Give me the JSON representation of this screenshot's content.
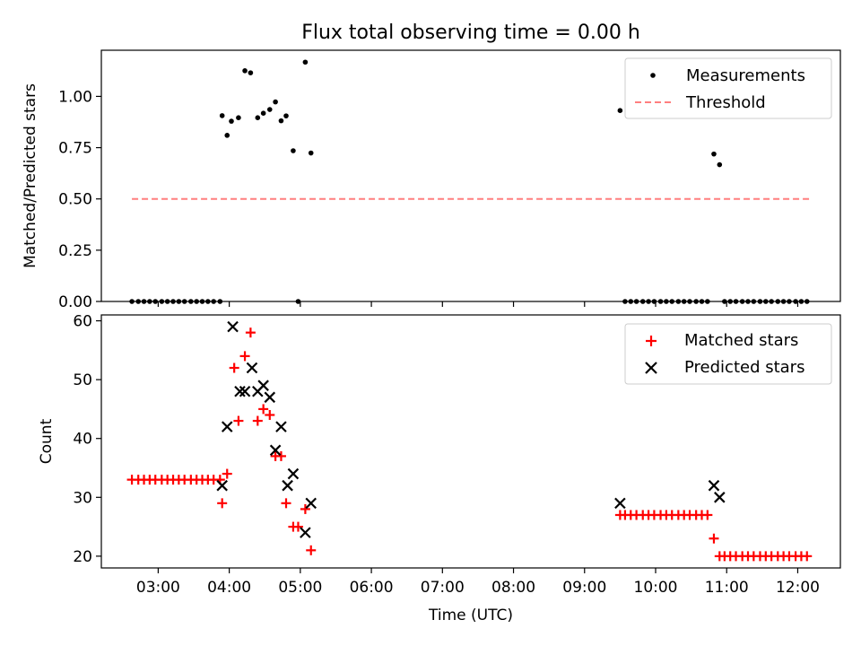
{
  "chart_data": [
    {
      "type": "scatter",
      "title": "Flux total observing time = 0.00 h",
      "xlabel": "",
      "ylabel": "Matched/Predicted stars",
      "ylim": [
        0,
        1.225
      ],
      "yticks": [
        0.0,
        0.25,
        0.5,
        0.75,
        1.0
      ],
      "ytick_labels": [
        "0.00",
        "0.25",
        "0.50",
        "0.75",
        "1.00"
      ],
      "grid": false,
      "legend_position": "top-right",
      "series": [
        {
          "name": "Measurements",
          "marker": "dot",
          "color": "#000000",
          "x_hours": [
            2.63,
            2.72,
            2.8,
            2.88,
            2.96,
            3.05,
            3.13,
            3.21,
            3.29,
            3.37,
            3.46,
            3.54,
            3.62,
            3.7,
            3.78,
            3.87,
            3.9,
            3.97,
            4.03,
            4.13,
            4.22,
            4.3,
            4.4,
            4.48,
            4.57,
            4.65,
            4.73,
            4.8,
            4.9,
            4.97,
            5.07,
            5.15,
            9.5,
            9.57,
            9.65,
            9.73,
            9.82,
            9.9,
            9.98,
            10.07,
            10.15,
            10.23,
            10.32,
            10.4,
            10.48,
            10.57,
            10.65,
            10.73,
            10.82,
            10.9,
            10.97,
            11.05,
            11.13,
            11.22,
            11.3,
            11.38,
            11.47,
            11.55,
            11.63,
            11.72,
            11.8,
            11.88,
            11.97,
            12.05,
            12.13
          ],
          "y": [
            0,
            0,
            0,
            0,
            0,
            0,
            0,
            0,
            0,
            0,
            0,
            0,
            0,
            0,
            0,
            0,
            0.906,
            0.81,
            0.879,
            0.896,
            1.125,
            1.115,
            0.896,
            0.918,
            0.936,
            0.973,
            0.881,
            0.905,
            0.735,
            0,
            1.167,
            0.724,
            0.931,
            0,
            0,
            0,
            0,
            0,
            0,
            0,
            0,
            0,
            0,
            0,
            0,
            0,
            0,
            0,
            0.719,
            0.667,
            0,
            0,
            0,
            0,
            0,
            0,
            0,
            0,
            0,
            0,
            0,
            0,
            0,
            0,
            0
          ]
        },
        {
          "name": "Threshold",
          "style": "dashed",
          "color": "#ff7f7f",
          "x_hours": [
            2.63,
            12.17
          ],
          "y": [
            0.5,
            0.5
          ]
        }
      ]
    },
    {
      "type": "scatter",
      "xlabel": "Time (UTC)",
      "ylabel": "Count",
      "ylim": [
        18,
        61
      ],
      "yticks": [
        20,
        30,
        40,
        50,
        60
      ],
      "ytick_labels": [
        "20",
        "30",
        "40",
        "50",
        "60"
      ],
      "xlim_hours": [
        2.2,
        12.6
      ],
      "xticks_hours": [
        3,
        4,
        5,
        6,
        7,
        8,
        9,
        10,
        11,
        12
      ],
      "xtick_labels": [
        "03:00",
        "04:00",
        "05:00",
        "06:00",
        "07:00",
        "08:00",
        "09:00",
        "10:00",
        "11:00",
        "12:00"
      ],
      "grid": false,
      "legend_position": "top-right",
      "series": [
        {
          "name": "Matched stars",
          "marker": "plus",
          "color": "#ff0000",
          "x_hours": [
            2.63,
            2.72,
            2.8,
            2.88,
            2.96,
            3.05,
            3.13,
            3.21,
            3.29,
            3.37,
            3.46,
            3.54,
            3.62,
            3.7,
            3.78,
            3.87,
            3.9,
            3.97,
            4.07,
            4.13,
            4.22,
            4.3,
            4.4,
            4.48,
            4.57,
            4.65,
            4.73,
            4.8,
            4.9,
            4.97,
            5.07,
            5.15,
            9.5,
            9.57,
            9.65,
            9.73,
            9.82,
            9.9,
            9.98,
            10.07,
            10.15,
            10.23,
            10.32,
            10.4,
            10.48,
            10.57,
            10.65,
            10.73,
            10.82,
            10.9,
            10.97,
            11.05,
            11.13,
            11.22,
            11.3,
            11.38,
            11.47,
            11.55,
            11.63,
            11.72,
            11.8,
            11.88,
            11.97,
            12.05,
            12.13
          ],
          "y": [
            33,
            33,
            33,
            33,
            33,
            33,
            33,
            33,
            33,
            33,
            33,
            33,
            33,
            33,
            33,
            33,
            29,
            34,
            52,
            43,
            54,
            58,
            43,
            45,
            44,
            37,
            37,
            29,
            25,
            25,
            28,
            21,
            27,
            27,
            27,
            27,
            27,
            27,
            27,
            27,
            27,
            27,
            27,
            27,
            27,
            27,
            27,
            27,
            23,
            20,
            20,
            20,
            20,
            20,
            20,
            20,
            20,
            20,
            20,
            20,
            20,
            20,
            20,
            20,
            20
          ]
        },
        {
          "name": "Predicted stars",
          "marker": "x",
          "color": "#000000",
          "x_hours": [
            3.9,
            3.97,
            4.05,
            4.15,
            4.22,
            4.32,
            4.4,
            4.48,
            4.57,
            4.65,
            4.73,
            4.82,
            4.9,
            5.07,
            5.15,
            9.5,
            10.82,
            10.9
          ],
          "y": [
            32,
            42,
            59,
            48,
            48,
            52,
            48,
            49,
            47,
            38,
            42,
            32,
            34,
            24,
            29,
            29,
            32,
            30
          ]
        }
      ]
    }
  ]
}
